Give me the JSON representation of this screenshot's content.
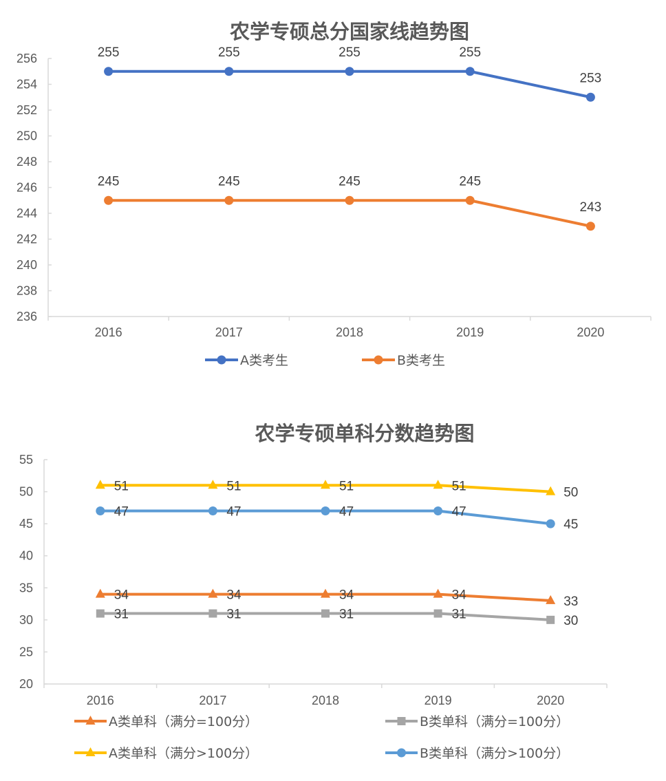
{
  "chart_data": [
    {
      "type": "line",
      "title": "农学专硕总分国家线趋势图",
      "categories": [
        "2016",
        "2017",
        "2018",
        "2019",
        "2020"
      ],
      "ylim": [
        236,
        256
      ],
      "ytick_step": 2,
      "grid": false,
      "legend": "bottom",
      "series": [
        {
          "name": "A类考生",
          "values": [
            255,
            255,
            255,
            255,
            253
          ],
          "color": "#4472C4",
          "marker": "circle"
        },
        {
          "name": "B类考生",
          "values": [
            245,
            245,
            245,
            245,
            243
          ],
          "color": "#ED7D31",
          "marker": "circle"
        }
      ]
    },
    {
      "type": "line",
      "title": "农学专硕单科分数趋势图",
      "categories": [
        "2016",
        "2017",
        "2018",
        "2019",
        "2020"
      ],
      "ylim": [
        20,
        55
      ],
      "ytick_step": 5,
      "grid": false,
      "legend": "bottom",
      "series": [
        {
          "name": "A类单科（满分=100分）",
          "values": [
            34,
            34,
            34,
            34,
            33
          ],
          "color": "#ED7D31",
          "marker": "triangle"
        },
        {
          "name": "B类单科（满分=100分）",
          "values": [
            31,
            31,
            31,
            31,
            30
          ],
          "color": "#A5A5A5",
          "marker": "square"
        },
        {
          "name": "A类单科（满分>100分）",
          "values": [
            51,
            51,
            51,
            51,
            50
          ],
          "color": "#FFC000",
          "marker": "triangle"
        },
        {
          "name": "B类单科（满分>100分）",
          "values": [
            47,
            47,
            47,
            47,
            45
          ],
          "color": "#5B9BD5",
          "marker": "circle"
        }
      ]
    }
  ]
}
